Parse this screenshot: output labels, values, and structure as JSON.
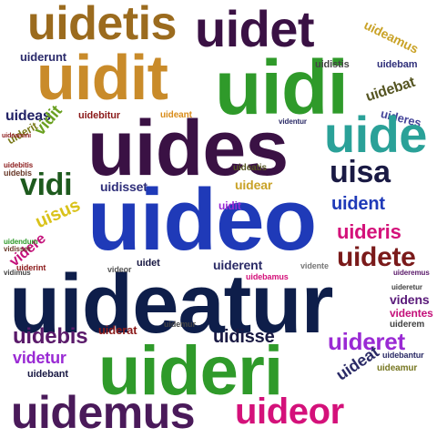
{
  "words": [
    {
      "text": "uidetis",
      "color": "#9b6b1e"
    },
    {
      "text": "uidet",
      "color": "#3a1144"
    },
    {
      "text": "uideamus",
      "color": "#c9a227"
    },
    {
      "text": "uiderunt",
      "color": "#2b2b6b"
    },
    {
      "text": "uidit",
      "color": "#c98b2a"
    },
    {
      "text": "uidi",
      "color": "#2f9a2a"
    },
    {
      "text": "uidistis",
      "color": "#444444"
    },
    {
      "text": "uidebam",
      "color": "#2f2f7a"
    },
    {
      "text": "uidebat",
      "color": "#555522"
    },
    {
      "text": "uideas",
      "color": "#222266"
    },
    {
      "text": "uidebitur",
      "color": "#8b1a1a"
    },
    {
      "text": "uideant",
      "color": "#d98c1a"
    },
    {
      "text": "uideres",
      "color": "#444499"
    },
    {
      "text": "uides",
      "color": "#3a1144"
    },
    {
      "text": "uide",
      "color": "#2aa198"
    },
    {
      "text": "vidit",
      "color": "#6aa020"
    },
    {
      "text": "uiderit",
      "color": "#7a7a1a"
    },
    {
      "text": "uideamini",
      "color": "#8b1a1a"
    },
    {
      "text": "uidebis",
      "color": "#6a3a2a"
    },
    {
      "text": "uisa",
      "color": "#1a1a44"
    },
    {
      "text": "vidi",
      "color": "#1e5a1e"
    },
    {
      "text": "uidisset",
      "color": "#2f2f7a"
    },
    {
      "text": "uideo",
      "color": "#1f3ab8"
    },
    {
      "text": "uident",
      "color": "#1f3ab8"
    },
    {
      "text": "uisus",
      "color": "#d9c21a"
    },
    {
      "text": "uideris",
      "color": "#d4117a"
    },
    {
      "text": "videre",
      "color": "#c4117a"
    },
    {
      "text": "uidete",
      "color": "#7a1a1a"
    },
    {
      "text": "uiderent",
      "color": "#2a2a66"
    },
    {
      "text": "vidente",
      "color": "#777777"
    },
    {
      "text": "uideatur",
      "color": "#0e1e4a"
    },
    {
      "text": "videns",
      "color": "#5a1a7a"
    },
    {
      "text": "videntes",
      "color": "#c4117a"
    },
    {
      "text": "uiderem",
      "color": "#444444"
    },
    {
      "text": "uidebis",
      "color": "#5a1a6a"
    },
    {
      "text": "uiderat",
      "color": "#8b1a1a"
    },
    {
      "text": "uidisse",
      "color": "#1a1a44"
    },
    {
      "text": "uideret",
      "color": "#9a2ad4"
    },
    {
      "text": "videtur",
      "color": "#9a2ad4"
    },
    {
      "text": "uideri",
      "color": "#2f9a2a"
    },
    {
      "text": "uideat",
      "color": "#2a2a66"
    },
    {
      "text": "uidebantur",
      "color": "#2a2a66"
    },
    {
      "text": "uideamur",
      "color": "#777722"
    },
    {
      "text": "uidebant",
      "color": "#1a1a44"
    },
    {
      "text": "uidemus",
      "color": "#4a1a5a"
    },
    {
      "text": "uideor",
      "color": "#d4117a"
    },
    {
      "text": "uidear",
      "color": "#c9a227"
    },
    {
      "text": "uiderint",
      "color": "#8b1a1a"
    },
    {
      "text": "videor",
      "color": "#555555"
    },
    {
      "text": "uidet",
      "color": "#1a1a44"
    },
    {
      "text": "videntur",
      "color": "#2a2a66"
    },
    {
      "text": "uideremus",
      "color": "#5a1a6a"
    },
    {
      "text": "uidendum",
      "color": "#2f9a2a"
    },
    {
      "text": "uidemur",
      "color": "#444444"
    },
    {
      "text": "vidisset",
      "color": "#6a3a2a"
    },
    {
      "text": "uidebitis",
      "color": "#8b1a1a"
    },
    {
      "text": "uideatis",
      "color": "#555522"
    },
    {
      "text": "uideretur",
      "color": "#444444"
    },
    {
      "text": "uidebamus",
      "color": "#d4117a"
    },
    {
      "text": "vidimus",
      "color": "#444444"
    },
    {
      "text": "uidit",
      "color": "#9a2ad4"
    }
  ]
}
